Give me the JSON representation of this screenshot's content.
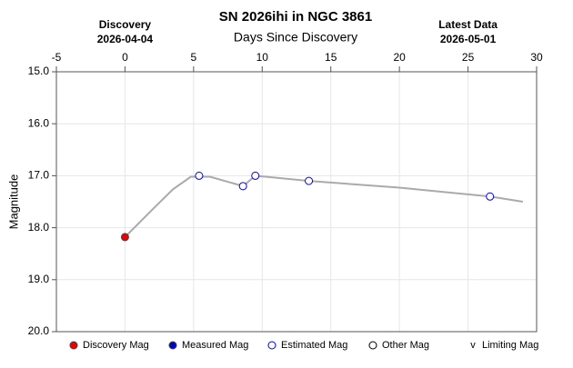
{
  "chart_data": {
    "type": "lightcurve",
    "title": "SN 2026ihi in NGC 3861",
    "xlabel": "Days Since Discovery",
    "ylabel": "Magnitude",
    "left_header": {
      "label": "Discovery",
      "date": "2026-04-04",
      "x": 0
    },
    "right_header": {
      "label": "Latest Data",
      "date": "2026-05-01",
      "x": 25
    },
    "xlim": [
      -5,
      30
    ],
    "xticks": [
      -5,
      0,
      5,
      10,
      15,
      20,
      25,
      30
    ],
    "ylim": [
      15,
      20
    ],
    "y_inverted": true,
    "yticks": [
      {
        "value": 15,
        "label": "15.0"
      },
      {
        "value": 16,
        "label": "16.0"
      },
      {
        "value": 17,
        "label": "17.0"
      },
      {
        "value": 18,
        "label": "18.0"
      },
      {
        "value": 19,
        "label": "19.0"
      },
      {
        "value": 20,
        "label": "20.0"
      }
    ],
    "grid": true,
    "line": {
      "color": "#aaaaaa",
      "x": [
        0,
        2,
        3.5,
        4.8,
        6.2,
        8.6,
        9.5,
        13.4,
        20,
        26.6,
        29
      ],
      "values": [
        18.18,
        17.65,
        17.26,
        17.02,
        17.02,
        17.2,
        17.0,
        17.1,
        17.23,
        17.4,
        17.5
      ]
    },
    "series": [
      {
        "name": "Discovery Mag",
        "color": "#ee0000",
        "marker": "filled",
        "x": [
          0
        ],
        "values": [
          18.18
        ]
      },
      {
        "name": "Measured Mag",
        "color": "#0000cc",
        "marker": "filled",
        "x": [],
        "values": []
      },
      {
        "name": "Estimated Mag",
        "color": "#0000ee",
        "marker": "open",
        "x": [
          5.4,
          8.6,
          9.5,
          13.4,
          26.6
        ],
        "values": [
          17.0,
          17.2,
          17.0,
          17.1,
          17.4
        ]
      },
      {
        "name": "Other Mag",
        "color": "#000000",
        "marker": "open",
        "x": [],
        "values": []
      },
      {
        "name": "Limiting Mag",
        "color": "#000000",
        "marker": "v",
        "x": [],
        "values": []
      }
    ]
  }
}
